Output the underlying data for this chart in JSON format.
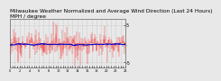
{
  "title_line1": "Milwaukee Weather Normalized and Average Wind Direction (Last 24 Hours)",
  "title_line2": "MPH / degree",
  "background_color": "#e8e8e8",
  "plot_bg_color": "#e8e8e8",
  "grid_color": "#aaaaaa",
  "red_color": "#ff0000",
  "blue_color": "#0000cc",
  "ylim": [
    -6.5,
    6.5
  ],
  "num_points": 288,
  "yticks": [
    5,
    0,
    -5
  ],
  "ytick_labels": [
    "5",
    ".",
    "-5"
  ],
  "title_fontsize": 4.2,
  "avg_line_y": 0.5
}
